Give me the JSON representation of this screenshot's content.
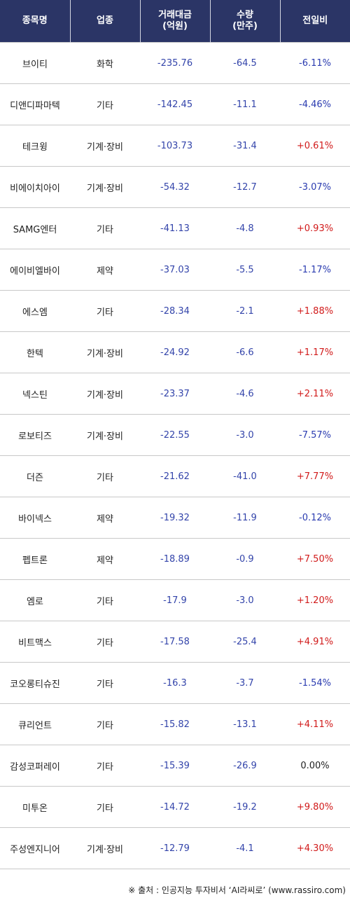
{
  "headers": {
    "name": "종목명",
    "sector": "업종",
    "amount_l1": "거래대금",
    "amount_l2": "(억원)",
    "volume_l1": "수량",
    "volume_l2": "(만주)",
    "change": "전일비"
  },
  "rows": [
    {
      "name": "브이티",
      "sector": "화학",
      "amount": "-235.76",
      "volume": "-64.5",
      "change": "-6.11%",
      "dir": "down"
    },
    {
      "name": "디앤디파마텍",
      "sector": "기타",
      "amount": "-142.45",
      "volume": "-11.1",
      "change": "-4.46%",
      "dir": "down"
    },
    {
      "name": "테크윙",
      "sector": "기계·장비",
      "amount": "-103.73",
      "volume": "-31.4",
      "change": "+0.61%",
      "dir": "up"
    },
    {
      "name": "비에이치아이",
      "sector": "기계·장비",
      "amount": "-54.32",
      "volume": "-12.7",
      "change": "-3.07%",
      "dir": "down"
    },
    {
      "name": "SAMG엔터",
      "sector": "기타",
      "amount": "-41.13",
      "volume": "-4.8",
      "change": "+0.93%",
      "dir": "up"
    },
    {
      "name": "에이비엘바이",
      "sector": "제약",
      "amount": "-37.03",
      "volume": "-5.5",
      "change": "-1.17%",
      "dir": "down"
    },
    {
      "name": "에스엠",
      "sector": "기타",
      "amount": "-28.34",
      "volume": "-2.1",
      "change": "+1.88%",
      "dir": "up"
    },
    {
      "name": "한텍",
      "sector": "기계·장비",
      "amount": "-24.92",
      "volume": "-6.6",
      "change": "+1.17%",
      "dir": "up"
    },
    {
      "name": "넥스틴",
      "sector": "기계·장비",
      "amount": "-23.37",
      "volume": "-4.6",
      "change": "+2.11%",
      "dir": "up"
    },
    {
      "name": "로보티즈",
      "sector": "기계·장비",
      "amount": "-22.55",
      "volume": "-3.0",
      "change": "-7.57%",
      "dir": "down"
    },
    {
      "name": "더즌",
      "sector": "기타",
      "amount": "-21.62",
      "volume": "-41.0",
      "change": "+7.77%",
      "dir": "up"
    },
    {
      "name": "바이넥스",
      "sector": "제약",
      "amount": "-19.32",
      "volume": "-11.9",
      "change": "-0.12%",
      "dir": "down"
    },
    {
      "name": "펩트론",
      "sector": "제약",
      "amount": "-18.89",
      "volume": "-0.9",
      "change": "+7.50%",
      "dir": "up"
    },
    {
      "name": "엠로",
      "sector": "기타",
      "amount": "-17.9",
      "volume": "-3.0",
      "change": "+1.20%",
      "dir": "up"
    },
    {
      "name": "비트맥스",
      "sector": "기타",
      "amount": "-17.58",
      "volume": "-25.4",
      "change": "+4.91%",
      "dir": "up"
    },
    {
      "name": "코오롱티슈진",
      "sector": "기타",
      "amount": "-16.3",
      "volume": "-3.7",
      "change": "-1.54%",
      "dir": "down"
    },
    {
      "name": "큐리언트",
      "sector": "기타",
      "amount": "-15.82",
      "volume": "-13.1",
      "change": "+4.11%",
      "dir": "up"
    },
    {
      "name": "감성코퍼레이",
      "sector": "기타",
      "amount": "-15.39",
      "volume": "-26.9",
      "change": "0.00%",
      "dir": "flat"
    },
    {
      "name": "미투온",
      "sector": "기타",
      "amount": "-14.72",
      "volume": "-19.2",
      "change": "+9.80%",
      "dir": "up"
    },
    {
      "name": "주성엔지니어",
      "sector": "기계·장비",
      "amount": "-12.79",
      "volume": "-4.1",
      "change": "+4.30%",
      "dir": "up"
    }
  ],
  "colors": {
    "header_bg": "#2b3566",
    "up": "#d11a1a",
    "down": "#2a3bb0",
    "value": "#3344aa"
  },
  "source": "※ 출처 : 인공지능 투자비서 ‘AI라씨로’ (www.rassiro.com)"
}
